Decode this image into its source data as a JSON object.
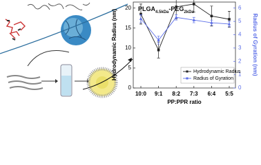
{
  "chart_data": {
    "type": "line",
    "title": [
      "PLGA",
      "4.5kDa",
      "-PEG",
      "2kDa"
    ],
    "x_label": "PP:PPR ratio",
    "y_label": "Hydrodynamic Radius (nm)",
    "y2_label": "Radius of Gyration (nm)",
    "categories": [
      "10:0",
      "9:1",
      "8:2",
      "7:3",
      "6:4",
      "5:5"
    ],
    "series": [
      {
        "name": "Hydrodynamic Radius",
        "color": "#222222",
        "values": [
          18.5,
          9.5,
          20.3,
          21,
          18,
          17.2
        ],
        "errors": [
          2.5,
          2,
          3,
          2,
          2.5,
          2
        ]
      },
      {
        "name": "Radius of Gyration",
        "color": "#5b6ee8",
        "axis": "y2",
        "values": [
          5.2,
          3.6,
          5.3,
          5.1,
          4.9,
          4.8
        ],
        "errors": [
          0.3,
          0.3,
          0.2,
          0.2,
          0.2,
          0.2
        ]
      }
    ],
    "ylim": [
      0,
      21.5
    ],
    "yticks": [
      0,
      5,
      10,
      15,
      20
    ],
    "y2lim": [
      0,
      6.45
    ],
    "y2ticks": [
      0,
      1,
      2,
      3,
      4,
      5,
      6
    ],
    "legend": "lower right"
  }
}
